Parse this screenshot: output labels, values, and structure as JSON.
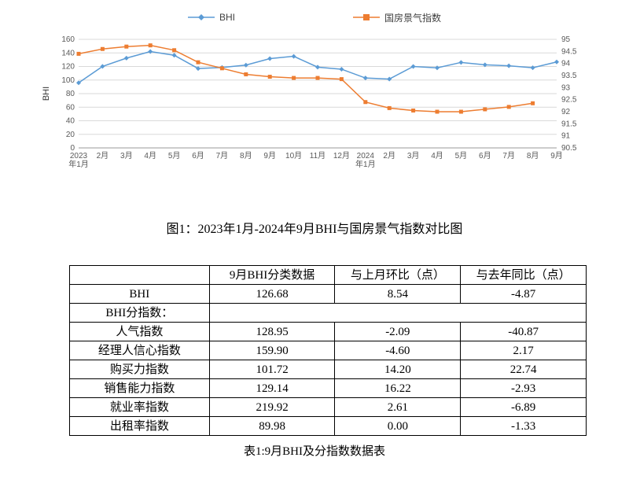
{
  "page": {
    "chart_caption": "图1：2023年1月-2024年9月BHI与国房景气指数对比图",
    "table_caption": "表1:9月BHI及分指数数据表"
  },
  "chart_data": {
    "type": "line",
    "title": "",
    "x": [
      "2023年1月",
      "2月",
      "3月",
      "4月",
      "5月",
      "6月",
      "7月",
      "8月",
      "9月",
      "10月",
      "11月",
      "12月",
      "2024年1月",
      "2月",
      "3月",
      "4月",
      "5月",
      "6月",
      "7月",
      "8月",
      "9月"
    ],
    "series": [
      {
        "name": "BHI",
        "axis": "left",
        "color": "#5b9bd5",
        "marker": "diamond",
        "values": [
          95.9,
          120.1,
          132.3,
          142.0,
          136.5,
          117.0,
          118.5,
          122.0,
          131.55,
          135.0,
          119.0,
          116.0,
          103.0,
          101.5,
          120.0,
          118.0,
          126.0,
          122.5,
          121.0,
          118.14,
          126.68
        ]
      },
      {
        "name": "国房景气指数",
        "axis": "right",
        "color": "#ed7d31",
        "marker": "square",
        "values": [
          94.4,
          94.6,
          94.7,
          94.75,
          94.55,
          94.05,
          93.8,
          93.55,
          93.45,
          93.4,
          93.4,
          93.35,
          92.4,
          92.15,
          92.05,
          92.0,
          92.0,
          92.1,
          92.2,
          92.35,
          null
        ]
      }
    ],
    "left_axis": {
      "label": "BHI",
      "min": 0,
      "max": 160,
      "step": 20
    },
    "right_axis": {
      "min": 90.5,
      "max": 95,
      "step": 0.5
    },
    "grid": true,
    "legend_position": "top"
  },
  "table": {
    "headers": [
      "",
      "9月BHI分类数据",
      "与上月环比（点）",
      "与去年同比（点）"
    ],
    "rows": [
      {
        "label": "BHI",
        "values": [
          "126.68",
          "8.54",
          "-4.87"
        ]
      },
      {
        "label": "BHI分指数：",
        "values": [
          "",
          "",
          ""
        ]
      },
      {
        "label": "人气指数",
        "values": [
          "128.95",
          "-2.09",
          "-40.87"
        ]
      },
      {
        "label": "经理人信心指数",
        "values": [
          "159.90",
          "-4.60",
          "2.17"
        ]
      },
      {
        "label": "购买力指数",
        "values": [
          "101.72",
          "14.20",
          "22.74"
        ]
      },
      {
        "label": "销售能力指数",
        "values": [
          "129.14",
          "16.22",
          "-2.93"
        ]
      },
      {
        "label": "就业率指数",
        "values": [
          "219.92",
          "2.61",
          "-6.89"
        ]
      },
      {
        "label": "出租率指数",
        "values": [
          "89.98",
          "0.00",
          "-1.33"
        ]
      }
    ]
  }
}
